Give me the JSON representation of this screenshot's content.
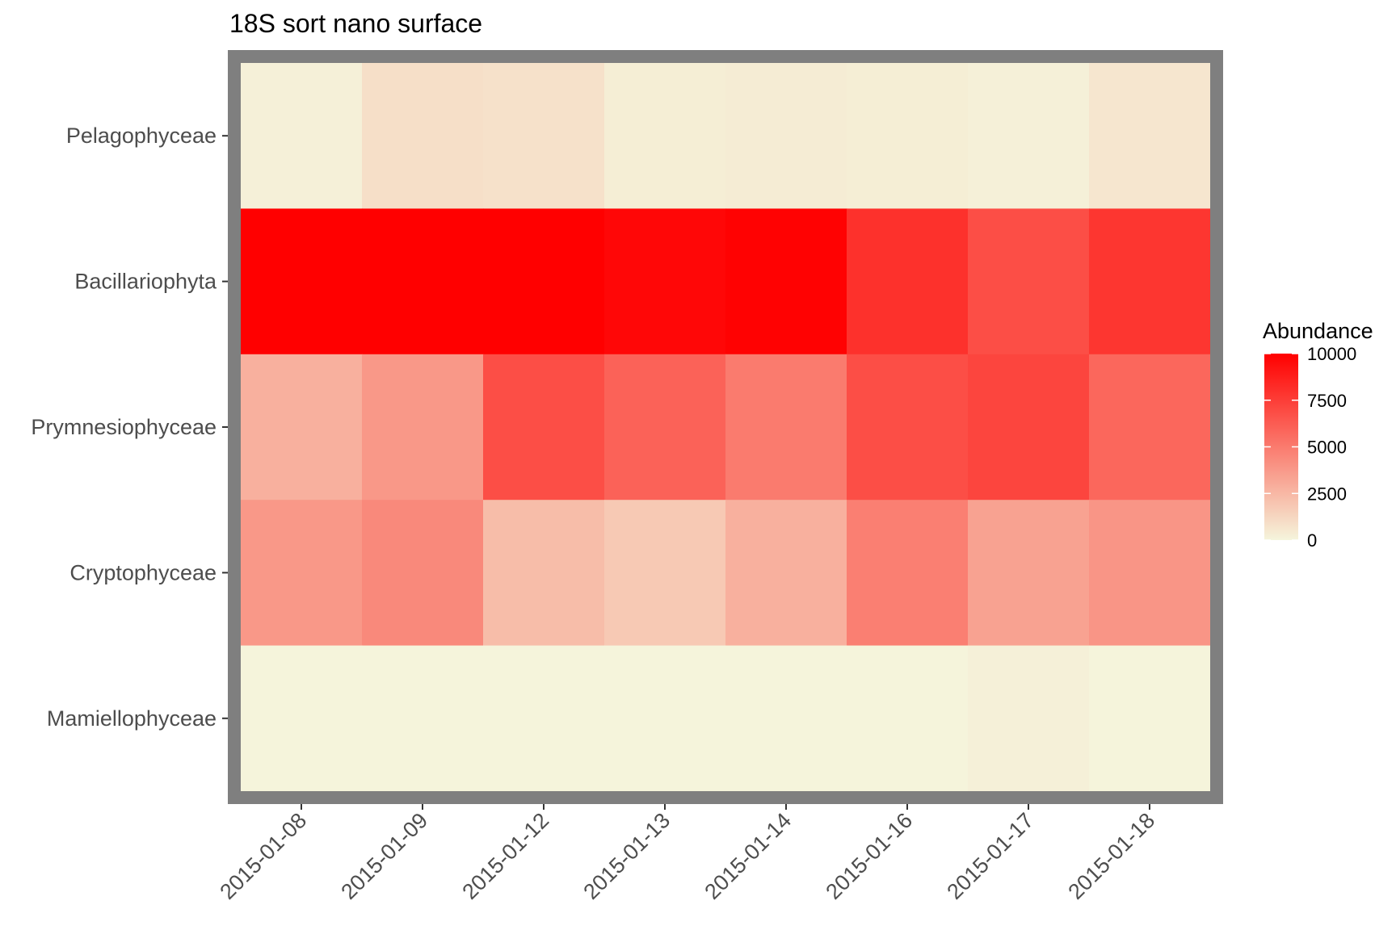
{
  "chart_data": {
    "type": "heatmap",
    "title": "18S sort nano surface",
    "xlabel": "",
    "ylabel": "",
    "x_categories": [
      "2015-01-08",
      "2015-01-09",
      "2015-01-12",
      "2015-01-13",
      "2015-01-14",
      "2015-01-16",
      "2015-01-17",
      "2015-01-18"
    ],
    "y_categories": [
      "Pelagophyceae",
      "Bacillariophyta",
      "Prymnesiophyceae",
      "Cryptophyceae",
      "Mamiellophyceae"
    ],
    "values": [
      [
        200,
        900,
        800,
        300,
        350,
        300,
        200,
        600
      ],
      [
        10000,
        10000,
        10000,
        9700,
        9900,
        8000,
        6800,
        7800
      ],
      [
        2800,
        3800,
        6800,
        6000,
        5000,
        6800,
        7200,
        5800
      ],
      [
        3800,
        4400,
        2300,
        1800,
        2800,
        4800,
        3400,
        3900
      ],
      [
        60,
        60,
        40,
        40,
        40,
        30,
        200,
        50
      ]
    ],
    "legend": {
      "title": "Abundance",
      "ticks": [
        "10000",
        "7500",
        "5000",
        "2500",
        "0"
      ],
      "min": 0,
      "max": 10000,
      "position": "right"
    },
    "colors": {
      "low": "#F5F5DC",
      "high": "#FF0000",
      "panel_border": "#7f7f7f"
    },
    "grid": false
  }
}
